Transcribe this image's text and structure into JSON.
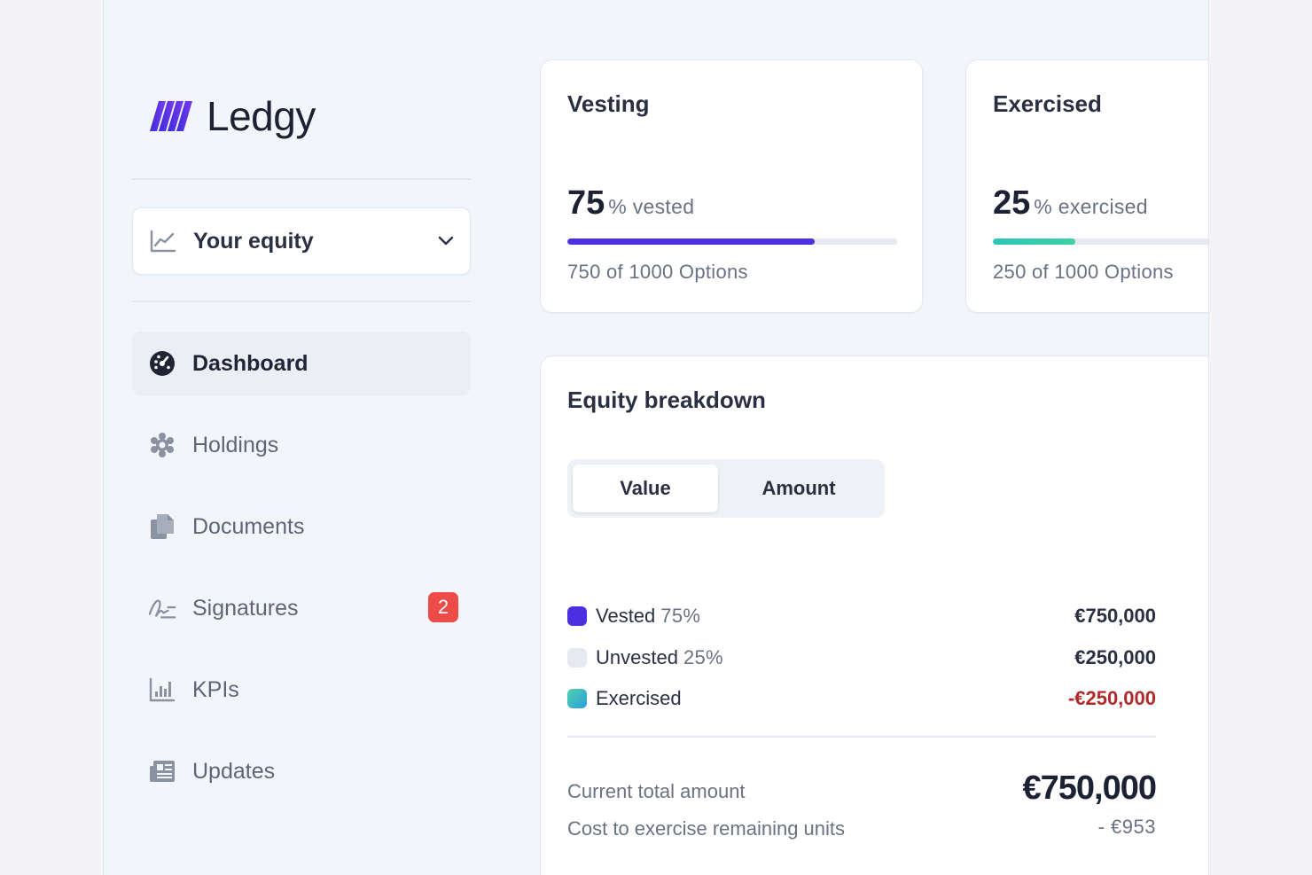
{
  "brand": {
    "name": "Ledgy",
    "accent": "#4b2fe0"
  },
  "selector": {
    "label": "Your equity",
    "icon": "line-chart-icon"
  },
  "nav": {
    "items": [
      {
        "label": "Dashboard",
        "icon": "dashboard-gauge-icon",
        "active": true
      },
      {
        "label": "Holdings",
        "icon": "holdings-gear-icon"
      },
      {
        "label": "Documents",
        "icon": "documents-icon"
      },
      {
        "label": "Signatures",
        "icon": "signature-icon",
        "badge": "2"
      },
      {
        "label": "KPIs",
        "icon": "kpi-chart-icon"
      },
      {
        "label": "Updates",
        "icon": "newspaper-icon"
      }
    ]
  },
  "vesting": {
    "title": "Vesting",
    "value": "75",
    "suffix": "% vested",
    "progress": 0.75,
    "sub": "750 of 1000 Options",
    "color": "#4b2fe0"
  },
  "exercised": {
    "title": "Exercised",
    "value": "25",
    "suffix": "% exercised",
    "progress": 0.25,
    "sub": "250 of 1000 Options",
    "color": "#2ec5b6"
  },
  "breakdown": {
    "title": "Equity breakdown",
    "tabs": [
      {
        "label": "Value",
        "active": true
      },
      {
        "label": "Amount"
      }
    ],
    "rows": [
      {
        "name": "Vested",
        "pct": "75%",
        "value": "€750,000",
        "color": "#4b2fe0"
      },
      {
        "name": "Unvested",
        "pct": "25%",
        "value": "€250,000",
        "color": "#e6e9ef"
      },
      {
        "name": "Exercised",
        "pct": "",
        "value": "-€250,000",
        "color": "#2ec5b6",
        "negative": true
      }
    ],
    "total_label": "Current total amount",
    "total_value": "€750,000",
    "cost_label": "Cost to exercise remaining units",
    "cost_value": "- €953"
  }
}
